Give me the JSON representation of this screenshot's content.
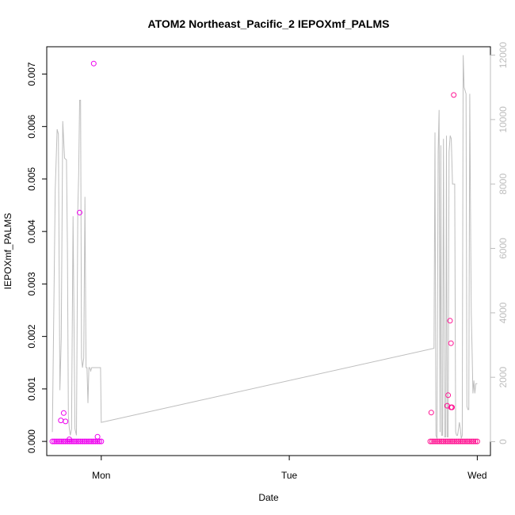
{
  "chart_data": {
    "type": "scatter",
    "title": "ATOM2 Northeast_Pacific_2 IEPOXmf_PALMS",
    "xlabel": "Date",
    "ylabel": "IEPOXmf_PALMS",
    "x_ticks": [
      "Mon",
      "Tue",
      "Wed"
    ],
    "x_tick_values": [
      0,
      1,
      2
    ],
    "xlim": [
      -0.29,
      2.07
    ],
    "ylim": [
      -0.00027,
      0.00752
    ],
    "y_ticks": [
      0.0,
      0.001,
      0.002,
      0.003,
      0.004,
      0.005,
      0.006,
      0.007
    ],
    "y_tick_labels": [
      "0.000",
      "0.001",
      "0.002",
      "0.003",
      "0.004",
      "0.005",
      "0.006",
      "0.007"
    ],
    "y2lim": [
      -430,
      12260
    ],
    "y2_ticks": [
      0,
      2000,
      4000,
      6000,
      8000,
      10000,
      12000
    ],
    "y2_tick_labels": [
      "0",
      "2000",
      "4000",
      "6000",
      "8000",
      "10000",
      "12000"
    ],
    "grid": false,
    "colors": {
      "points_first_segment": "#ee00ee",
      "points_second_segment": "#ff1493",
      "altitude_line": "#bebebe",
      "right_axis_text": "#bdbdbd"
    },
    "series": [
      {
        "kind": "line",
        "axis": "right",
        "values_x": [
          -0.26,
          -0.245,
          -0.235,
          -0.228,
          -0.22,
          -0.213,
          -0.205,
          -0.195,
          -0.185,
          -0.18,
          -0.175,
          -0.17,
          -0.165,
          -0.158,
          -0.15,
          -0.14,
          -0.132,
          -0.125,
          -0.12,
          -0.115,
          -0.11,
          -0.105,
          -0.1,
          -0.093,
          -0.087,
          -0.081,
          -0.076,
          -0.071,
          -0.066,
          -0.061,
          -0.056,
          -0.051,
          -0.045,
          -0.04,
          -0.034,
          -0.028,
          -0.022,
          -0.016,
          -0.01,
          -0.004,
          0.0,
          1.77,
          1.775,
          1.78,
          1.786,
          1.792,
          1.797,
          1.802,
          1.806,
          1.81,
          1.815,
          1.82,
          1.826,
          1.832,
          1.836,
          1.84,
          1.845,
          1.85,
          1.856,
          1.862,
          1.868,
          1.875,
          1.88,
          1.885,
          1.89,
          1.895,
          1.9,
          1.905,
          1.91,
          1.915,
          1.92,
          1.925,
          1.93,
          1.935,
          1.94,
          1.945,
          1.95,
          1.955,
          1.96,
          1.965,
          1.968,
          1.972,
          1.977,
          1.982,
          1.987,
          1.992,
          1.998,
          2.0
        ],
        "values_y": [
          300,
          7800,
          9700,
          9550,
          1600,
          3200,
          9950,
          8800,
          8750,
          6000,
          800,
          400,
          200,
          400,
          7000,
          400,
          200,
          7200,
          8300,
          10600,
          10600,
          2600,
          2300,
          2600,
          7600,
          2300,
          2300,
          1200,
          2300,
          2300,
          2200,
          2300,
          2300,
          2300,
          2300,
          2300,
          2300,
          2300,
          2300,
          2300,
          600,
          2900,
          9600,
          200,
          100,
          9000,
          10300,
          300,
          9200,
          200,
          200,
          9400,
          150,
          150,
          9500,
          150,
          150,
          9000,
          9500,
          9400,
          8000,
          8000,
          8000,
          300,
          200,
          200,
          400,
          600,
          400,
          100,
          200,
          12000,
          11000,
          10900,
          10800,
          1100,
          1000,
          1000,
          10800,
          6200,
          4000,
          3000,
          1500,
          1900,
          1500,
          1800,
          1800,
          1800
        ]
      },
      {
        "kind": "points",
        "axis": "left",
        "name_segment": "first",
        "values_x": [
          -0.26,
          -0.25,
          -0.24,
          -0.23,
          -0.22,
          -0.21,
          -0.2,
          -0.19,
          -0.18,
          -0.17,
          -0.16,
          -0.15,
          -0.14,
          -0.13,
          -0.12,
          -0.11,
          -0.1,
          -0.09,
          -0.08,
          -0.07,
          -0.06,
          -0.05,
          -0.04,
          -0.03,
          -0.02,
          -0.01,
          0.0,
          -0.215,
          -0.2,
          -0.19,
          -0.17,
          -0.115,
          -0.04,
          -0.02
        ],
        "values_y": [
          0,
          0,
          0,
          0,
          0,
          0,
          0,
          0,
          0,
          0,
          0,
          0,
          0,
          0,
          0,
          0,
          0,
          0,
          0,
          0,
          0,
          0,
          0,
          0,
          0,
          0,
          0,
          0.0004,
          0.00054,
          0.00038,
          4e-05,
          0.00436,
          0.0072,
          9e-05
        ]
      },
      {
        "kind": "points",
        "axis": "left",
        "name_segment": "second",
        "values_x": [
          1.75,
          1.76,
          1.77,
          1.78,
          1.79,
          1.8,
          1.81,
          1.82,
          1.83,
          1.84,
          1.85,
          1.86,
          1.87,
          1.88,
          1.89,
          1.9,
          1.91,
          1.92,
          1.93,
          1.94,
          1.95,
          1.96,
          1.97,
          1.98,
          1.99,
          2.0,
          1.755,
          1.84,
          1.845,
          1.855,
          1.86,
          1.86,
          1.865,
          1.865,
          1.875
        ],
        "values_y": [
          0,
          0,
          0,
          0,
          0,
          0,
          0,
          0,
          0,
          0,
          0,
          0,
          0,
          0,
          0,
          0,
          0,
          0,
          0,
          0,
          0,
          0,
          0,
          0,
          0,
          0,
          0.00055,
          0.00068,
          0.00088,
          0.0023,
          0.00187,
          0.00065,
          0.00065,
          0.00065,
          0.0066
        ]
      }
    ]
  }
}
